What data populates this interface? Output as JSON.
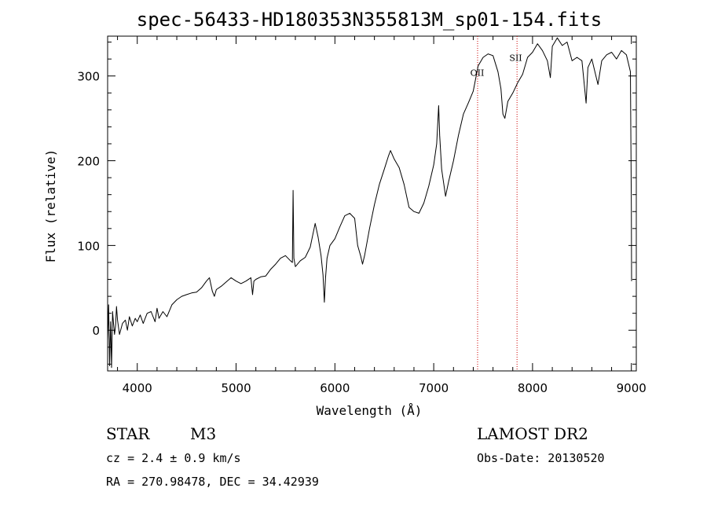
{
  "chart_data": {
    "type": "line",
    "title": "spec-56433-HD180353N355813M_sp01-154.fits",
    "xlabel": "Wavelength (Å)",
    "ylabel": "Flux (relative)",
    "xlim": [
      3700,
      9050
    ],
    "ylim": [
      -48,
      347
    ],
    "x_ticks": [
      4000,
      5000,
      6000,
      7000,
      8000,
      9000
    ],
    "y_ticks": [
      0,
      100,
      200,
      300
    ],
    "series": [
      {
        "color": "#000000",
        "points": [
          [
            3700,
            -12
          ],
          [
            3710,
            30
          ],
          [
            3720,
            -42
          ],
          [
            3730,
            10
          ],
          [
            3740,
            -44
          ],
          [
            3750,
            22
          ],
          [
            3760,
            8
          ],
          [
            3770,
            -5
          ],
          [
            3780,
            5
          ],
          [
            3790,
            28
          ],
          [
            3800,
            12
          ],
          [
            3820,
            -5
          ],
          [
            3850,
            8
          ],
          [
            3880,
            12
          ],
          [
            3900,
            0
          ],
          [
            3920,
            16
          ],
          [
            3950,
            5
          ],
          [
            3980,
            14
          ],
          [
            4000,
            10
          ],
          [
            4030,
            18
          ],
          [
            4060,
            8
          ],
          [
            4100,
            20
          ],
          [
            4140,
            22
          ],
          [
            4180,
            10
          ],
          [
            4200,
            26
          ],
          [
            4220,
            14
          ],
          [
            4260,
            22
          ],
          [
            4300,
            16
          ],
          [
            4350,
            30
          ],
          [
            4400,
            36
          ],
          [
            4450,
            40
          ],
          [
            4500,
            42
          ],
          [
            4550,
            44
          ],
          [
            4600,
            45
          ],
          [
            4650,
            50
          ],
          [
            4700,
            58
          ],
          [
            4730,
            62
          ],
          [
            4760,
            46
          ],
          [
            4780,
            40
          ],
          [
            4800,
            48
          ],
          [
            4850,
            52
          ],
          [
            4900,
            57
          ],
          [
            4950,
            62
          ],
          [
            5000,
            58
          ],
          [
            5050,
            55
          ],
          [
            5100,
            58
          ],
          [
            5150,
            62
          ],
          [
            5167,
            42
          ],
          [
            5180,
            58
          ],
          [
            5200,
            60
          ],
          [
            5250,
            63
          ],
          [
            5300,
            64
          ],
          [
            5350,
            72
          ],
          [
            5400,
            78
          ],
          [
            5450,
            85
          ],
          [
            5500,
            88
          ],
          [
            5550,
            82
          ],
          [
            5570,
            80
          ],
          [
            5577,
            165
          ],
          [
            5585,
            85
          ],
          [
            5600,
            75
          ],
          [
            5650,
            82
          ],
          [
            5700,
            86
          ],
          [
            5750,
            98
          ],
          [
            5800,
            126
          ],
          [
            5830,
            110
          ],
          [
            5860,
            88
          ],
          [
            5880,
            65
          ],
          [
            5893,
            33
          ],
          [
            5905,
            62
          ],
          [
            5920,
            85
          ],
          [
            5950,
            100
          ],
          [
            6000,
            108
          ],
          [
            6050,
            122
          ],
          [
            6100,
            135
          ],
          [
            6150,
            138
          ],
          [
            6200,
            132
          ],
          [
            6230,
            100
          ],
          [
            6260,
            88
          ],
          [
            6280,
            78
          ],
          [
            6300,
            88
          ],
          [
            6350,
            120
          ],
          [
            6400,
            148
          ],
          [
            6450,
            172
          ],
          [
            6500,
            190
          ],
          [
            6540,
            205
          ],
          [
            6563,
            212
          ],
          [
            6600,
            202
          ],
          [
            6650,
            192
          ],
          [
            6700,
            172
          ],
          [
            6750,
            145
          ],
          [
            6800,
            140
          ],
          [
            6850,
            138
          ],
          [
            6900,
            150
          ],
          [
            6950,
            170
          ],
          [
            7000,
            195
          ],
          [
            7030,
            220
          ],
          [
            7050,
            265
          ],
          [
            7060,
            230
          ],
          [
            7080,
            190
          ],
          [
            7120,
            158
          ],
          [
            7150,
            175
          ],
          [
            7200,
            200
          ],
          [
            7250,
            230
          ],
          [
            7300,
            255
          ],
          [
            7350,
            268
          ],
          [
            7400,
            282
          ],
          [
            7450,
            312
          ],
          [
            7500,
            322
          ],
          [
            7550,
            326
          ],
          [
            7600,
            324
          ],
          [
            7650,
            305
          ],
          [
            7680,
            285
          ],
          [
            7700,
            255
          ],
          [
            7720,
            250
          ],
          [
            7750,
            270
          ],
          [
            7800,
            280
          ],
          [
            7850,
            292
          ],
          [
            7900,
            302
          ],
          [
            7950,
            322
          ],
          [
            8000,
            328
          ],
          [
            8050,
            338
          ],
          [
            8100,
            330
          ],
          [
            8150,
            318
          ],
          [
            8180,
            298
          ],
          [
            8200,
            335
          ],
          [
            8250,
            345
          ],
          [
            8300,
            336
          ],
          [
            8350,
            340
          ],
          [
            8400,
            318
          ],
          [
            8450,
            322
          ],
          [
            8500,
            318
          ],
          [
            8542,
            268
          ],
          [
            8560,
            310
          ],
          [
            8600,
            320
          ],
          [
            8662,
            290
          ],
          [
            8700,
            318
          ],
          [
            8750,
            325
          ],
          [
            8800,
            328
          ],
          [
            8850,
            320
          ],
          [
            8900,
            330
          ],
          [
            8950,
            325
          ],
          [
            8990,
            305
          ],
          [
            9000,
            145
          ],
          [
            9002,
            58
          ]
        ]
      }
    ],
    "annotations": [
      {
        "label": "OII",
        "x": 7440,
        "y": 300
      },
      {
        "label": "SII",
        "x": 7830,
        "y": 318
      }
    ],
    "reference_lines": [
      7444,
      7843
    ],
    "reference_color": "#cc0000",
    "grid": false,
    "legend": "none"
  },
  "info": {
    "object_class": "STAR",
    "subclass": "M3",
    "redshift": "cz = 2.4 ± 0.9 km/s",
    "coords": "RA = 270.98478, DEC =  34.42939",
    "survey": "LAMOST DR2",
    "obs_date": "Obs-Date: 20130520"
  }
}
